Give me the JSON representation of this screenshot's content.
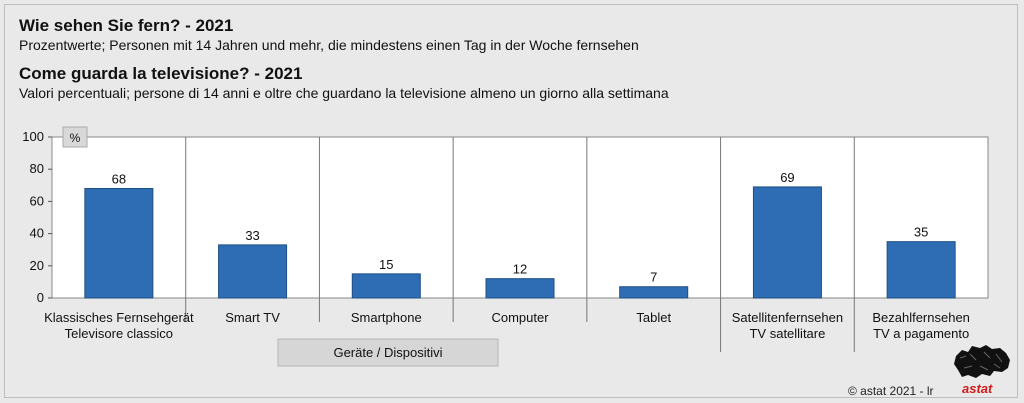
{
  "header": {
    "title_de": "Wie sehen Sie fern? - 2021",
    "subtitle_de": "Prozentwerte; Personen mit 14 Jahren und mehr, die mindestens einen Tag in der Woche fernsehen",
    "title_it": "Come guarda la televisione? - 2021",
    "subtitle_it": "Valori percentuali; persone di 14 anni e oltre che guardano la televisione almeno un giorno alla settimana"
  },
  "chart_data": {
    "type": "bar",
    "unit_label": "%",
    "categories": [
      [
        "Klassisches Fernsehgerät",
        "Televisore classico"
      ],
      [
        "Smart TV"
      ],
      [
        "Smartphone"
      ],
      [
        "Computer"
      ],
      [
        "Tablet"
      ],
      [
        "Satellitenfernsehen",
        "TV satellitare"
      ],
      [
        "Bezahlfernsehen",
        "TV a pagamento"
      ]
    ],
    "values": [
      68,
      33,
      15,
      12,
      7,
      69,
      35
    ],
    "ylim": [
      0,
      100
    ],
    "yticks": [
      0,
      20,
      40,
      60,
      80,
      100
    ],
    "group_label": "Geräte / Dispositivi",
    "bar_color": "#2e6db3",
    "grid": false
  },
  "footer": {
    "copyright": "© astat 2021 - lr",
    "logo_text": "astat"
  }
}
